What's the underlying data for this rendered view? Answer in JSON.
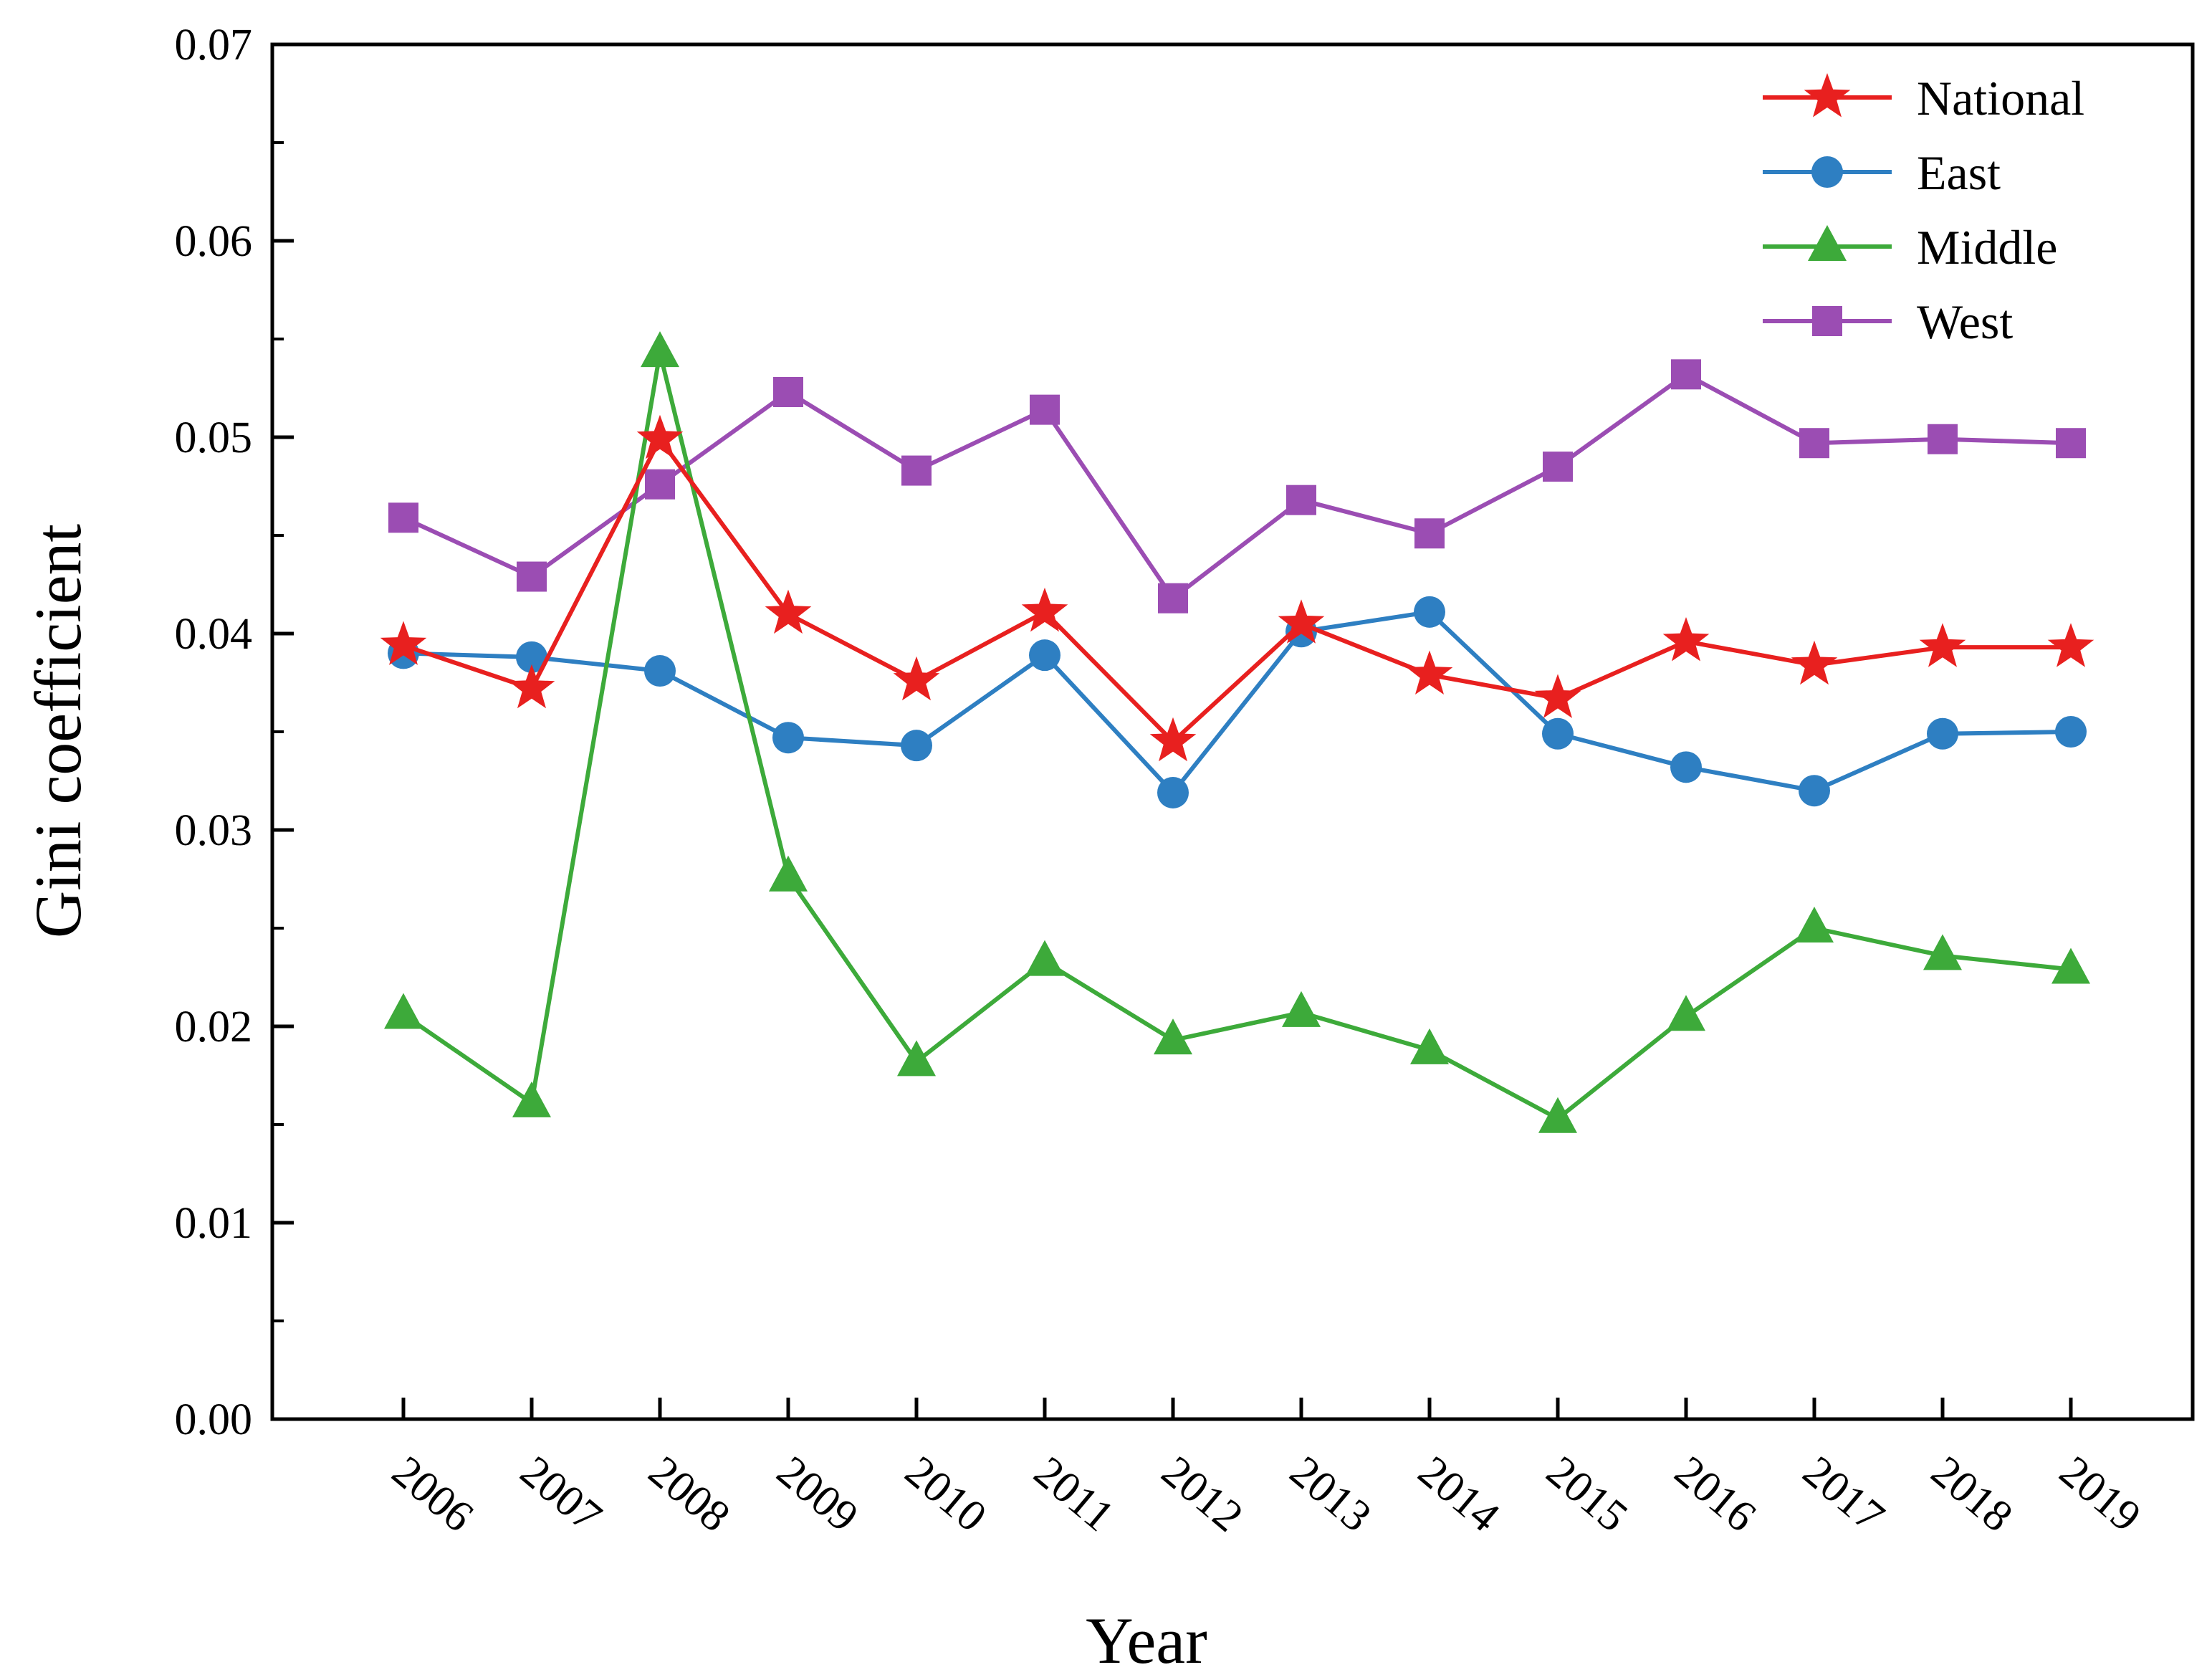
{
  "chart_data": {
    "type": "line",
    "title": "",
    "xlabel": "Year",
    "ylabel": "Gini coefficient",
    "categories": [
      "2006",
      "2007",
      "2008",
      "2009",
      "2010",
      "2011",
      "2012",
      "2013",
      "2014",
      "2015",
      "2016",
      "2017",
      "2018",
      "2019"
    ],
    "ylim": [
      0,
      0.07
    ],
    "yticks": [
      "0.00",
      "0.01",
      "0.02",
      "0.03",
      "0.04",
      "0.05",
      "0.06",
      "0.07"
    ],
    "grid": false,
    "legend_position": "top-right",
    "series": [
      {
        "name": "National",
        "color": "#e8201f",
        "marker": "star",
        "values": [
          0.0394,
          0.0372,
          0.0499,
          0.041,
          0.0376,
          0.0411,
          0.0345,
          0.0405,
          0.0379,
          0.0367,
          0.0396,
          0.0384,
          0.0393,
          0.0393
        ]
      },
      {
        "name": "East",
        "color": "#2e7fc2",
        "marker": "circle",
        "values": [
          0.039,
          0.0388,
          0.0381,
          0.0347,
          0.0343,
          0.0389,
          0.0319,
          0.0401,
          0.0411,
          0.0349,
          0.0332,
          0.032,
          0.0349,
          0.035
        ]
      },
      {
        "name": "Middle",
        "color": "#3daa3a",
        "marker": "triangle",
        "values": [
          0.0206,
          0.0161,
          0.0543,
          0.0276,
          0.0182,
          0.0233,
          0.0193,
          0.0207,
          0.0188,
          0.0153,
          0.0205,
          0.025,
          0.0236,
          0.0229
        ]
      },
      {
        "name": "West",
        "color": "#9b4db3",
        "marker": "square",
        "values": [
          0.0459,
          0.0429,
          0.0476,
          0.0523,
          0.0483,
          0.0514,
          0.0418,
          0.0468,
          0.0451,
          0.0485,
          0.0532,
          0.0497,
          0.0499,
          0.0497
        ]
      }
    ]
  }
}
